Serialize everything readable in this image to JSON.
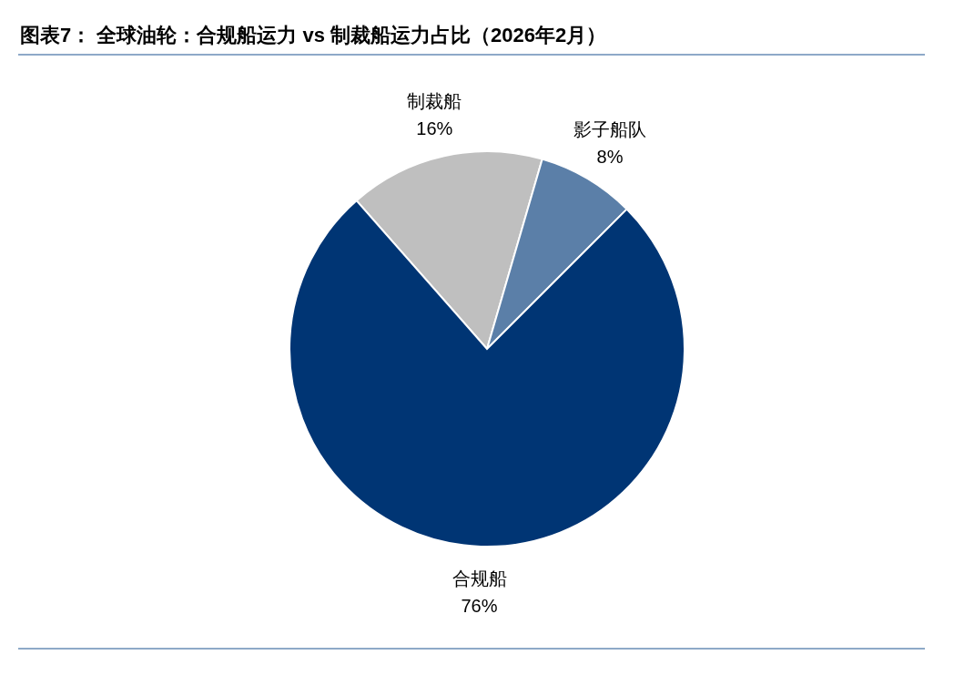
{
  "chart_data": {
    "type": "pie",
    "title": "图表7：  全球油轮：合规船运力 vs 制裁船运力占比（2026年2月）",
    "categories": [
      "制裁船",
      "影子船队",
      "合规船"
    ],
    "values": [
      16,
      8,
      76
    ],
    "colors": [
      "#bfbfbf",
      "#5b7fa8",
      "#003574"
    ],
    "value_labels": [
      "16%",
      "8%",
      "76%"
    ],
    "legend": false
  }
}
